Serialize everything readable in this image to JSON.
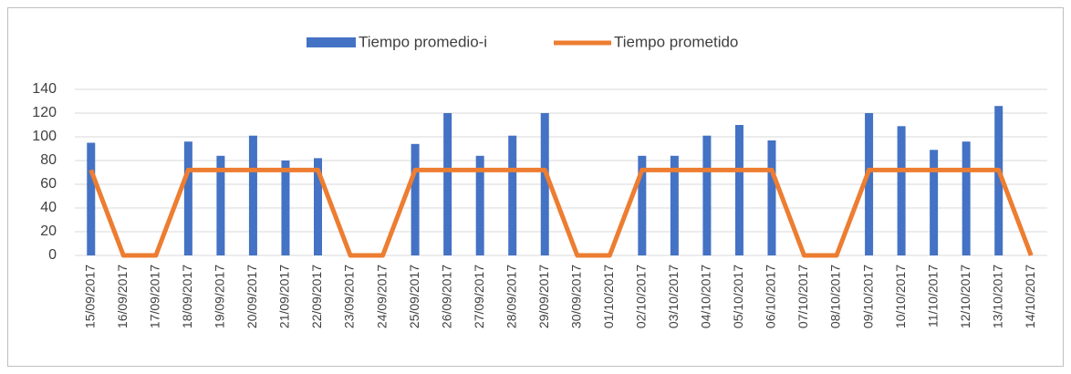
{
  "chart_data": {
    "type": "bar_line",
    "categories": [
      "15/09/2017",
      "16/09/2017",
      "17/09/2017",
      "18/09/2017",
      "19/09/2017",
      "20/09/2017",
      "21/09/2017",
      "22/09/2017",
      "23/09/2017",
      "24/09/2017",
      "25/09/2017",
      "26/09/2017",
      "27/09/2017",
      "28/09/2017",
      "29/09/2017",
      "30/09/2017",
      "01/10/2017",
      "02/10/2017",
      "03/10/2017",
      "04/10/2017",
      "05/10/2017",
      "06/10/2017",
      "07/10/2017",
      "08/10/2017",
      "09/10/2017",
      "10/10/2017",
      "11/10/2017",
      "12/10/2017",
      "13/10/2017",
      "14/10/2017"
    ],
    "series": [
      {
        "name": "Tiempo promedio-i",
        "type": "bar",
        "color": "#4472c4",
        "values": [
          95,
          0,
          0,
          96,
          84,
          101,
          80,
          82,
          0,
          0,
          94,
          120,
          84,
          101,
          120,
          0,
          0,
          84,
          84,
          101,
          110,
          97,
          0,
          0,
          120,
          109,
          89,
          96,
          126,
          0
        ]
      },
      {
        "name": "Tiempo prometido",
        "type": "line",
        "color": "#ed7d31",
        "values": [
          72,
          0,
          0,
          72,
          72,
          72,
          72,
          72,
          0,
          0,
          72,
          72,
          72,
          72,
          72,
          0,
          0,
          72,
          72,
          72,
          72,
          72,
          0,
          0,
          72,
          72,
          72,
          72,
          72,
          0
        ]
      }
    ],
    "ylim": [
      0,
      140
    ],
    "yticks": [
      0,
      20,
      40,
      60,
      80,
      100,
      120,
      140
    ],
    "grid": true,
    "legend": "top"
  }
}
